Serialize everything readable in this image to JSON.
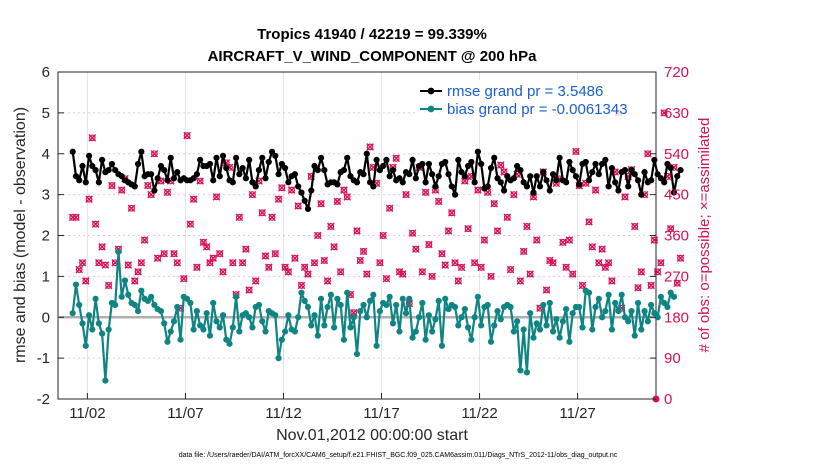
{
  "chart_data": {
    "type": "line",
    "title": "Tropics 41940 / 42219 = 99.339%",
    "subtitle": "AIRCRAFT_V_WIND_COMPONENT @ 200 hPa",
    "xlabel": "Nov.01,2012 00:00:00 start",
    "ylabel": "rmse and bias (model - observation)",
    "y2label": "# of obs: o=possible; ×=assimilated",
    "footnote": "data file: /Users/raeder/DAI/ATM_forcXX/CAM6_setup/f.e21.FHIST_BGC.f09_025.CAM6assim.011/Diags_NTrS_2012-11/obs_diag_output.nc",
    "xlim": [
      0.5,
      31
    ],
    "ylim": [
      -2,
      6
    ],
    "y2lim": [
      0,
      720
    ],
    "xticks": [
      2,
      7,
      12,
      17,
      22,
      27
    ],
    "xticklabels": [
      "11/02",
      "11/07",
      "11/12",
      "11/17",
      "11/22",
      "11/27"
    ],
    "yticks": [
      -2,
      -1,
      0,
      1,
      2,
      3,
      4,
      5,
      6
    ],
    "y2ticks": [
      0,
      90,
      180,
      270,
      360,
      450,
      540,
      630,
      720
    ],
    "zero_line": 0,
    "colors": {
      "rmse": "#000000",
      "bias": "#0f8583",
      "obs": "#d6115a",
      "legend_text": "#1a5fd0"
    },
    "series": [
      {
        "name": "rmse grand pr = 3.5486",
        "color": "#000000",
        "values": [
          4.05,
          3.45,
          3.35,
          3.7,
          3.3,
          3.95,
          3.7,
          3.6,
          3.3,
          3.85,
          3.55,
          3.6,
          3.75,
          3.6,
          3.5,
          3.45,
          3.35,
          3.3,
          3.25,
          3.2,
          3.75,
          4.05,
          3.45,
          3.5,
          3.5,
          3.1,
          3.4,
          3.7,
          3.6,
          3.35,
          3.9,
          3.4,
          3.55,
          3.35,
          3.4,
          3.35,
          3.35,
          3.4,
          3.5,
          3.85,
          3.7,
          3.7,
          3.75,
          3.35,
          3.9,
          3.45,
          3.95,
          3.65,
          3.35,
          3.3,
          3.9,
          3.5,
          3.65,
          3.4,
          3.85,
          3.3,
          3.2,
          3.6,
          3.9,
          3.4,
          3.8,
          4.05,
          3.95,
          3.5,
          3.75,
          3.65,
          3.3,
          3.45,
          3.5,
          3.2,
          3.05,
          2.85,
          2.65,
          3.1,
          3.7,
          3.6,
          3.9,
          3.6,
          3.25,
          3.3,
          3.3,
          3.25,
          3.55,
          3.6,
          3.9,
          3.45,
          3.35,
          3.3,
          3.55,
          3.5,
          4.0,
          3.3,
          3.2,
          3.85,
          3.6,
          3.7,
          3.85,
          3.45,
          3.6,
          3.35,
          3.4,
          3.3,
          3.55,
          3.5,
          3.85,
          3.4,
          3.7,
          3.75,
          3.3,
          3.75,
          3.5,
          3.2,
          3.45,
          3.75,
          3.8,
          3.5,
          3.2,
          3.0,
          3.85,
          3.55,
          3.45,
          3.7,
          3.8,
          3.3,
          4.05,
          3.75,
          3.15,
          3.2,
          3.65,
          3.9,
          3.4,
          3.3,
          3.1,
          3.45,
          3.35,
          3.4,
          3.7,
          3.6,
          3.3,
          3.2,
          3.45,
          3.05,
          3.45,
          3.2,
          3.55,
          3.35,
          3.1,
          3.5,
          3.35,
          3.9,
          3.35,
          3.3,
          3.8,
          3.6,
          3.45,
          3.25,
          3.75,
          3.8,
          3.35,
          3.55,
          3.75,
          3.5,
          3.75,
          3.85,
          3.2,
          3.65,
          3.3,
          3.1,
          3.55,
          3.6,
          3.2,
          3.6,
          3.5,
          3.35,
          3.0,
          3.55,
          3.3,
          3.35,
          3.85,
          3.5,
          3.4,
          3.3,
          3.75,
          3.65,
          3.05,
          3.45,
          3.6
        ]
      },
      {
        "name": "bias grand pr = -0.0061343",
        "color": "#0f8583",
        "values": [
          0.1,
          0.8,
          0.3,
          -0.15,
          -0.7,
          0.05,
          -0.3,
          0.45,
          -0.15,
          -0.4,
          -1.55,
          -0.3,
          0.35,
          0.3,
          1.6,
          0.5,
          0.9,
          0.55,
          0.35,
          0.3,
          0.15,
          0.65,
          0.45,
          0.4,
          0.5,
          0.3,
          0.2,
          0.15,
          -0.15,
          -0.6,
          -0.35,
          -0.1,
          0.25,
          -0.55,
          0.5,
          0.45,
          0.35,
          -0.3,
          0.15,
          -0.2,
          -0.3,
          0.1,
          -0.45,
          0.35,
          -0.1,
          -0.25,
          0.05,
          -0.55,
          -0.65,
          -0.25,
          0.5,
          -0.35,
          0.05,
          0.1,
          0.0,
          -0.25,
          0.25,
          0.3,
          -0.1,
          -0.35,
          0.15,
          0.1,
          0.05,
          -1.0,
          -0.55,
          -0.35,
          0.05,
          -0.3,
          -0.35,
          0.0,
          0.6,
          0.4,
          0.25,
          -0.2,
          0.05,
          -0.45,
          0.45,
          -0.2,
          0.25,
          0.55,
          -0.25,
          0.45,
          0.3,
          -0.55,
          0.6,
          -0.25,
          0.0,
          -0.9,
          0.15,
          0.3,
          0.0,
          0.4,
          0.55,
          -0.7,
          0.15,
          0.35,
          0.3,
          0.5,
          -0.15,
          0.3,
          -0.35,
          0.45,
          0.1,
          0.45,
          -0.5,
          -0.35,
          0.0,
          0.35,
          -0.55,
          0.05,
          -0.35,
          -0.05,
          0.4,
          -0.7,
          0.45,
          0.2,
          0.3,
          0.25,
          -0.2,
          0.0,
          0.2,
          -0.25,
          -0.55,
          0.0,
          0.5,
          -0.2,
          0.25,
          0.3,
          -0.6,
          -0.2,
          0.15,
          -0.05,
          0.25,
          0.3,
          0.25,
          -0.35,
          -0.1,
          -1.3,
          -0.3,
          -1.35,
          0.1,
          -0.5,
          -0.15,
          -0.3,
          0.3,
          -0.2,
          0.35,
          -0.35,
          -0.05,
          -0.5,
          -0.1,
          0.2,
          -0.6,
          0.1,
          0.25,
          0.25,
          -0.25,
          0.65,
          0.6,
          -0.3,
          0.25,
          0.45,
          0.0,
          0.15,
          0.55,
          -0.3,
          0.35,
          0.15,
          0.55,
          0.0,
          -0.1,
          0.15,
          -0.45,
          0.35,
          -0.3,
          0.15,
          -0.1,
          0.3,
          0.1,
          0.0,
          0.5,
          0.35,
          0.25,
          0.6,
          0.5
        ]
      }
    ],
    "obs_counts": [
      400,
      400,
      285,
      300,
      260,
      440,
      575,
      385,
      300,
      335,
      295,
      250,
      470,
      300,
      330,
      460,
      485,
      295,
      420,
      260,
      280,
      300,
      350,
      470,
      450,
      540,
      310,
      480,
      320,
      455,
      480,
      320,
      300,
      200,
      265,
      580,
      385,
      440,
      290,
      480,
      345,
      335,
      300,
      310,
      445,
      320,
      280,
      520,
      510,
      300,
      230,
      400,
      300,
      330,
      240,
      450,
      260,
      480,
      410,
      315,
      290,
      400,
      320,
      440,
      465,
      290,
      280,
      460,
      310,
      425,
      250,
      290,
      275,
      490,
      300,
      360,
      430,
      305,
      260,
      380,
      335,
      435,
      280,
      460,
      445,
      230,
      190,
      370,
      305,
      325,
      275,
      555,
      510,
      475,
      300,
      360,
      265,
      420,
      510,
      530,
      280,
      275,
      450,
      210,
      365,
      330,
      510,
      280,
      455,
      340,
      270,
      460,
      435,
      320,
      295,
      370,
      410,
      300,
      260,
      290,
      480,
      375,
      490,
      300,
      460,
      290,
      350,
      455,
      270,
      430,
      370,
      515,
      500,
      400,
      285,
      450,
      495,
      260,
      325,
      380,
      275,
      445,
      350,
      200,
      500,
      240,
      305,
      300,
      475,
      485,
      345,
      290,
      350,
      275,
      545,
      470,
      250,
      475,
      390,
      335,
      460,
      300,
      330,
      290,
      300,
      260,
      500,
      630,
      200,
      445,
      490,
      505,
      380,
      245,
      280,
      450,
      540,
      250,
      350,
      280,
      300,
      630,
      490,
      375,
      510,
      255,
      310
    ]
  }
}
